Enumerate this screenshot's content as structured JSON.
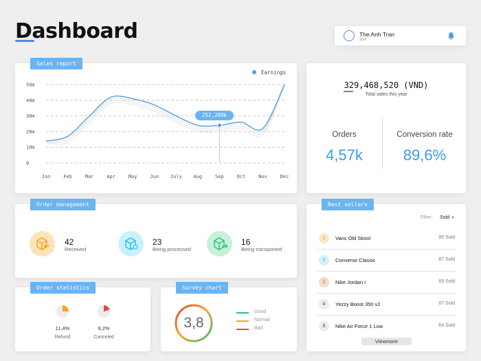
{
  "header": {
    "title": "Dashboard"
  },
  "profile": {
    "name": "The Anh Tran",
    "role": "Staff",
    "icon": "bell-icon"
  },
  "sales_report": {
    "tag": "Sales report",
    "legend": "Earnings",
    "tooltip": "252,289k",
    "colors": {
      "line": "#4a9ee8",
      "tooltip": "#6ab4f2"
    }
  },
  "chart_data": {
    "type": "line",
    "categories": [
      "Jan",
      "Feb",
      "Mar",
      "Apr",
      "May",
      "Jun",
      "July",
      "Aug",
      "Sep",
      "Oct",
      "Nov",
      "Dec"
    ],
    "y_ticks": [
      "50m",
      "40m",
      "30m",
      "20m",
      "10m",
      "0"
    ],
    "series": [
      {
        "name": "Earnings",
        "values": [
          14,
          17,
          30,
          42,
          41,
          37,
          30,
          24,
          24,
          26,
          22,
          50
        ]
      }
    ],
    "highlight": {
      "category": "Sep",
      "value": 24,
      "label": "252,289k"
    },
    "ylim": [
      0,
      50
    ],
    "grid": true,
    "legend_position": "top-right"
  },
  "totals": {
    "value": "329,468,520 (VND)",
    "label": "Total sales this year",
    "orders_label": "Orders",
    "orders_value": "4,57k",
    "conversion_label": "Conversion rate",
    "conversion_value": "89,6%"
  },
  "order_management": {
    "tag": "Order management",
    "items": [
      {
        "count": "42",
        "label": "Received",
        "icon": "box-received-icon",
        "color": "#f5a623"
      },
      {
        "count": "23",
        "label": "Being processed",
        "icon": "box-processing-icon",
        "color": "#29c1e6"
      },
      {
        "count": "16",
        "label": "Being transported",
        "icon": "box-transport-icon",
        "color": "#2ec37b"
      }
    ]
  },
  "order_statistics": {
    "tag": "Order statistics",
    "items": [
      {
        "value": "11,4%",
        "label": "Refund",
        "fraction": 0.114,
        "color": "#f5a623"
      },
      {
        "value": "9,2%",
        "label": "Canceled",
        "fraction": 0.092,
        "color": "#e8453c"
      }
    ]
  },
  "survey_chart": {
    "tag": "Survey chart",
    "score": "3,8",
    "legend": [
      {
        "label": "Good",
        "color": "#2ec37b"
      },
      {
        "label": "Normal",
        "color": "#f5a623"
      },
      {
        "label": "Bad",
        "color": "#e8453c"
      }
    ]
  },
  "best_sellers": {
    "tag": "Best sellers",
    "filter_label": "Filter:",
    "filter_value": "Sold",
    "items": [
      {
        "rank": "1",
        "name": "Vans Old Skool",
        "sold": "95 Sold",
        "bg": "#fde8c4",
        "fg": "#c88a1e"
      },
      {
        "rank": "2",
        "name": "Converse Classic",
        "sold": "87 Sold",
        "bg": "#d6f1fb",
        "fg": "#2aa7d6"
      },
      {
        "rank": "3",
        "name": "Nike Jordan I",
        "sold": "69 Sold",
        "bg": "#f4dcc8",
        "fg": "#b07040"
      },
      {
        "rank": "4",
        "name": "Yezzy Boost 350 v2",
        "sold": "67 Sold",
        "bg": "#ececec",
        "fg": "#444"
      },
      {
        "rank": "5",
        "name": "Nike Air Force 1 Low",
        "sold": "64 Sold",
        "bg": "#ececec",
        "fg": "#444"
      }
    ],
    "viewmore": "Viewmore"
  }
}
